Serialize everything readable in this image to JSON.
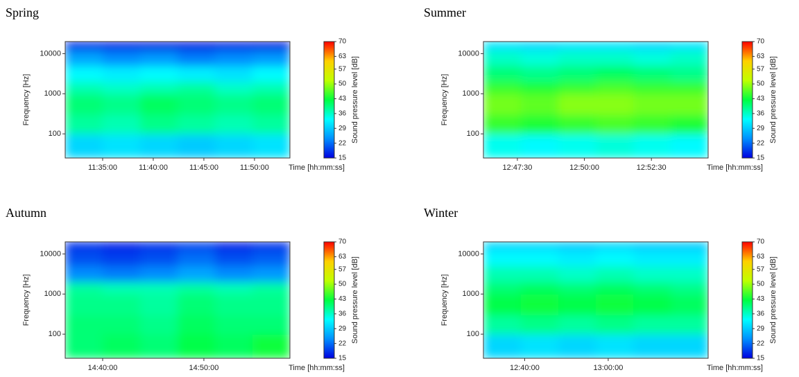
{
  "chart_data": [
    {
      "type": "heatmap",
      "title": "Spring",
      "ylabel": "Frequency [Hz]",
      "xlabel": "Time [hh:mm:ss]",
      "colorbar_label": "Sound pressure level [dB]",
      "xlim": [
        41478,
        42810
      ],
      "xticks": [
        {
          "value": 41700,
          "label": "11:35:00"
        },
        {
          "value": 42000,
          "label": "11:40:00"
        },
        {
          "value": 42300,
          "label": "11:45:00"
        },
        {
          "value": 42600,
          "label": "11:50:00"
        }
      ],
      "ylim": [
        25,
        20000
      ],
      "yticks": [
        100,
        1000,
        10000
      ],
      "log_y": true,
      "zlim": [
        15,
        70
      ],
      "zticks": [
        15,
        22,
        29,
        36,
        43,
        50,
        57,
        63,
        70
      ],
      "colorscale": [
        "#0000e0",
        "#0090ff",
        "#00ffff",
        "#00ff40",
        "#c0ff00",
        "#ffd000",
        "#ff0000"
      ],
      "x_bins": [
        41478,
        41700,
        41922,
        42144,
        42366,
        42588,
        42810
      ],
      "y_bins": [
        25,
        100,
        300,
        1000,
        2000,
        5000,
        12000,
        20000
      ],
      "z": [
        [
          30,
          31,
          30,
          29,
          30,
          31
        ],
        [
          38,
          37,
          39,
          38,
          37,
          38
        ],
        [
          40,
          39,
          41,
          40,
          39,
          40
        ],
        [
          37,
          36,
          37,
          38,
          36,
          37
        ],
        [
          33,
          32,
          33,
          32,
          31,
          33
        ],
        [
          26,
          24,
          25,
          23,
          24,
          25
        ],
        [
          17,
          16,
          15,
          15,
          16,
          15
        ]
      ]
    },
    {
      "type": "heatmap",
      "title": "Summer",
      "ylabel": "Frequency [Hz]",
      "xlabel": "Time [hh:mm:ss]",
      "colorbar_label": "Sound pressure level [dB]",
      "xlim": [
        45974,
        46477
      ],
      "xticks": [
        {
          "value": 46050,
          "label": "12:47:30"
        },
        {
          "value": 46200,
          "label": "12:50:00"
        },
        {
          "value": 46350,
          "label": "12:52:30"
        }
      ],
      "ylim": [
        25,
        20000
      ],
      "yticks": [
        100,
        1000,
        10000
      ],
      "log_y": true,
      "zlim": [
        15,
        70
      ],
      "zticks": [
        15,
        22,
        29,
        36,
        43,
        50,
        57,
        63,
        70
      ],
      "colorscale": [
        "#0000e0",
        "#0090ff",
        "#00ffff",
        "#00ff40",
        "#c0ff00",
        "#ffd000",
        "#ff0000"
      ],
      "x_bins": [
        45974,
        46058,
        46142,
        46226,
        46309,
        46393,
        46477
      ],
      "y_bins": [
        25,
        100,
        300,
        1000,
        2000,
        5000,
        12000,
        20000
      ],
      "z": [
        [
          34,
          33,
          34,
          35,
          34,
          33
        ],
        [
          45,
          44,
          45,
          46,
          45,
          44
        ],
        [
          48,
          47,
          49,
          49,
          48,
          48
        ],
        [
          45,
          44,
          45,
          46,
          45,
          45
        ],
        [
          40,
          39,
          40,
          41,
          40,
          39
        ],
        [
          36,
          35,
          36,
          36,
          35,
          36
        ],
        [
          31,
          30,
          31,
          31,
          30,
          31
        ]
      ]
    },
    {
      "type": "heatmap",
      "title": "Autumn",
      "ylabel": "Frequency [Hz]",
      "xlabel": "Time [hh:mm:ss]",
      "colorbar_label": "Sound pressure level [dB]",
      "xlim": [
        52578,
        53910
      ],
      "xticks": [
        {
          "value": 52800,
          "label": "14:40:00"
        },
        {
          "value": 53400,
          "label": "14:50:00"
        }
      ],
      "ylim": [
        25,
        20000
      ],
      "yticks": [
        100,
        1000,
        10000
      ],
      "log_y": true,
      "zlim": [
        15,
        70
      ],
      "zticks": [
        15,
        22,
        29,
        36,
        43,
        50,
        57,
        63,
        70
      ],
      "colorscale": [
        "#0000e0",
        "#0090ff",
        "#00ffff",
        "#00ff40",
        "#c0ff00",
        "#ffd000",
        "#ff0000"
      ],
      "x_bins": [
        52578,
        52800,
        53022,
        53244,
        53466,
        53688,
        53910
      ],
      "y_bins": [
        25,
        100,
        300,
        1000,
        2000,
        5000,
        12000,
        20000
      ],
      "z": [
        [
          40,
          41,
          40,
          42,
          41,
          43
        ],
        [
          40,
          40,
          39,
          41,
          40,
          40
        ],
        [
          39,
          39,
          38,
          40,
          39,
          39
        ],
        [
          38,
          37,
          37,
          38,
          37,
          38
        ],
        [
          24,
          23,
          24,
          26,
          24,
          25
        ],
        [
          20,
          19,
          20,
          22,
          20,
          21
        ],
        [
          18,
          17,
          18,
          19,
          17,
          18
        ]
      ]
    },
    {
      "type": "heatmap",
      "title": "Winter",
      "ylabel": "Frequency [Hz]",
      "xlabel": "Time [hh:mm:ss]",
      "colorbar_label": "Sound pressure level [dB]",
      "xlim": [
        45008,
        48235
      ],
      "xticks": [
        {
          "value": 45600,
          "label": "12:40:00"
        },
        {
          "value": 46800,
          "label": "13:00:00"
        }
      ],
      "ylim": [
        25,
        20000
      ],
      "yticks": [
        100,
        1000,
        10000
      ],
      "log_y": true,
      "zlim": [
        15,
        70
      ],
      "zticks": [
        15,
        22,
        29,
        36,
        43,
        50,
        57,
        63,
        70
      ],
      "colorscale": [
        "#0000e0",
        "#0090ff",
        "#00ffff",
        "#00ff40",
        "#c0ff00",
        "#ffd000",
        "#ff0000"
      ],
      "x_bins": [
        45008,
        45546,
        46084,
        46622,
        47159,
        47697,
        48235
      ],
      "y_bins": [
        25,
        100,
        300,
        1000,
        2000,
        5000,
        12000,
        20000
      ],
      "z": [
        [
          30,
          31,
          30,
          31,
          30,
          30
        ],
        [
          38,
          39,
          38,
          39,
          38,
          38
        ],
        [
          42,
          43,
          42,
          43,
          42,
          41
        ],
        [
          40,
          41,
          40,
          41,
          40,
          39
        ],
        [
          37,
          37,
          36,
          37,
          36,
          36
        ],
        [
          33,
          33,
          32,
          33,
          32,
          32
        ],
        [
          30,
          30,
          29,
          30,
          29,
          29
        ]
      ]
    }
  ]
}
